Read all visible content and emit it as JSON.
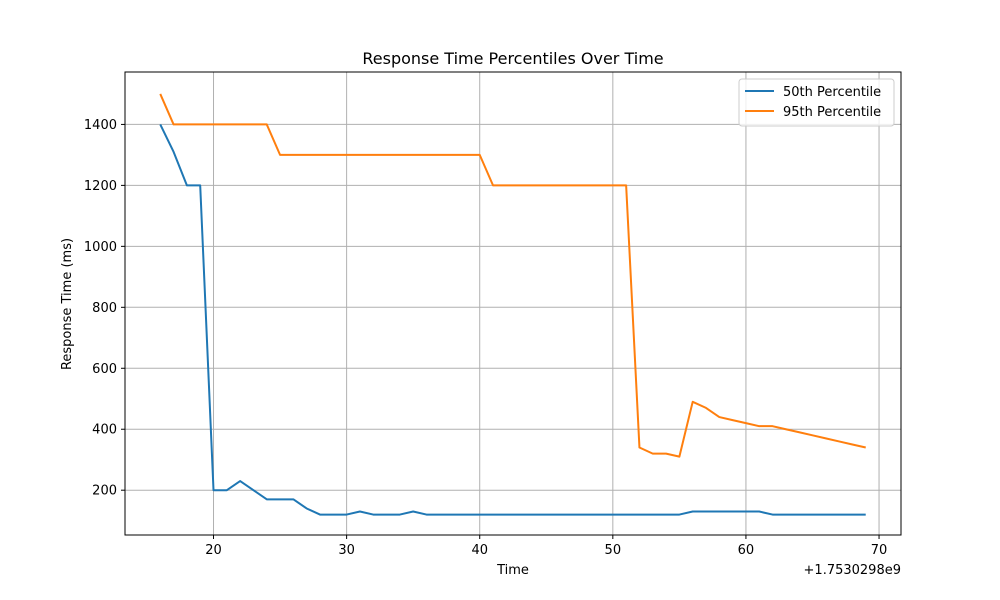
{
  "chart_data": {
    "type": "line",
    "title": "Response Time Percentiles Over Time",
    "xlabel": "Time",
    "ylabel": "Response Time (ms)",
    "x_offset_label": "+1.7530298e9",
    "xlim": [
      13.35,
      71.65
    ],
    "ylim": [
      53,
      1572
    ],
    "xticks": [
      20,
      30,
      40,
      50,
      60,
      70
    ],
    "yticks": [
      200,
      400,
      600,
      800,
      1000,
      1200,
      1400
    ],
    "grid": true,
    "legend_position": "top-right",
    "series": [
      {
        "name": "50th Percentile",
        "color": "#1f77b4",
        "points": [
          [
            16,
            1400
          ],
          [
            17,
            1310
          ],
          [
            18,
            1200
          ],
          [
            19,
            1200
          ],
          [
            20,
            200
          ],
          [
            21,
            200
          ],
          [
            22,
            230
          ],
          [
            23,
            200
          ],
          [
            24,
            170
          ],
          [
            25,
            170
          ],
          [
            26,
            170
          ],
          [
            27,
            140
          ],
          [
            28,
            120
          ],
          [
            29,
            120
          ],
          [
            30,
            120
          ],
          [
            31,
            130
          ],
          [
            32,
            120
          ],
          [
            33,
            120
          ],
          [
            34,
            120
          ],
          [
            35,
            130
          ],
          [
            36,
            120
          ],
          [
            37,
            120
          ],
          [
            38,
            120
          ],
          [
            39,
            120
          ],
          [
            40,
            120
          ],
          [
            41,
            120
          ],
          [
            42,
            120
          ],
          [
            43,
            120
          ],
          [
            44,
            120
          ],
          [
            45,
            120
          ],
          [
            46,
            120
          ],
          [
            47,
            120
          ],
          [
            48,
            120
          ],
          [
            49,
            120
          ],
          [
            50,
            120
          ],
          [
            51,
            120
          ],
          [
            52,
            120
          ],
          [
            53,
            120
          ],
          [
            54,
            120
          ],
          [
            55,
            120
          ],
          [
            56,
            130
          ],
          [
            57,
            130
          ],
          [
            58,
            130
          ],
          [
            59,
            130
          ],
          [
            60,
            130
          ],
          [
            61,
            130
          ],
          [
            62,
            120
          ],
          [
            63,
            120
          ],
          [
            64,
            120
          ],
          [
            65,
            120
          ],
          [
            66,
            120
          ],
          [
            67,
            120
          ],
          [
            68,
            120
          ],
          [
            69,
            120
          ]
        ]
      },
      {
        "name": "95th Percentile",
        "color": "#ff7f0e",
        "points": [
          [
            16,
            1500
          ],
          [
            17,
            1400
          ],
          [
            18,
            1400
          ],
          [
            19,
            1400
          ],
          [
            20,
            1400
          ],
          [
            21,
            1400
          ],
          [
            22,
            1400
          ],
          [
            23,
            1400
          ],
          [
            24,
            1400
          ],
          [
            25,
            1300
          ],
          [
            26,
            1300
          ],
          [
            27,
            1300
          ],
          [
            28,
            1300
          ],
          [
            29,
            1300
          ],
          [
            30,
            1300
          ],
          [
            31,
            1300
          ],
          [
            32,
            1300
          ],
          [
            33,
            1300
          ],
          [
            34,
            1300
          ],
          [
            35,
            1300
          ],
          [
            36,
            1300
          ],
          [
            37,
            1300
          ],
          [
            38,
            1300
          ],
          [
            39,
            1300
          ],
          [
            40,
            1300
          ],
          [
            41,
            1200
          ],
          [
            42,
            1200
          ],
          [
            43,
            1200
          ],
          [
            44,
            1200
          ],
          [
            45,
            1200
          ],
          [
            46,
            1200
          ],
          [
            47,
            1200
          ],
          [
            48,
            1200
          ],
          [
            49,
            1200
          ],
          [
            50,
            1200
          ],
          [
            51,
            1200
          ],
          [
            52,
            340
          ],
          [
            53,
            320
          ],
          [
            54,
            320
          ],
          [
            55,
            310
          ],
          [
            56,
            490
          ],
          [
            57,
            470
          ],
          [
            58,
            440
          ],
          [
            59,
            430
          ],
          [
            60,
            420
          ],
          [
            61,
            410
          ],
          [
            62,
            410
          ],
          [
            63,
            400
          ],
          [
            64,
            390
          ],
          [
            65,
            380
          ],
          [
            66,
            370
          ],
          [
            67,
            360
          ],
          [
            68,
            350
          ],
          [
            69,
            340
          ]
        ]
      }
    ]
  }
}
